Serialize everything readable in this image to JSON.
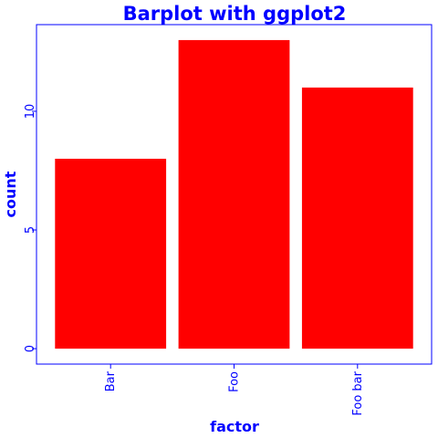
{
  "chart_data": {
    "type": "bar",
    "title": "Barplot with ggplot2",
    "xlabel": "factor",
    "ylabel": "count",
    "categories": [
      "Bar",
      "Foo",
      "Foo bar"
    ],
    "values": [
      8,
      13,
      11
    ],
    "yticks": [
      0,
      5,
      10
    ],
    "ylim": [
      -0.65,
      13.65
    ],
    "grid": false,
    "legend": "none",
    "colors": {
      "bar": "#ff0000",
      "text": "#0000ff",
      "axis": "#0000ff",
      "background": "#ffffff"
    }
  }
}
